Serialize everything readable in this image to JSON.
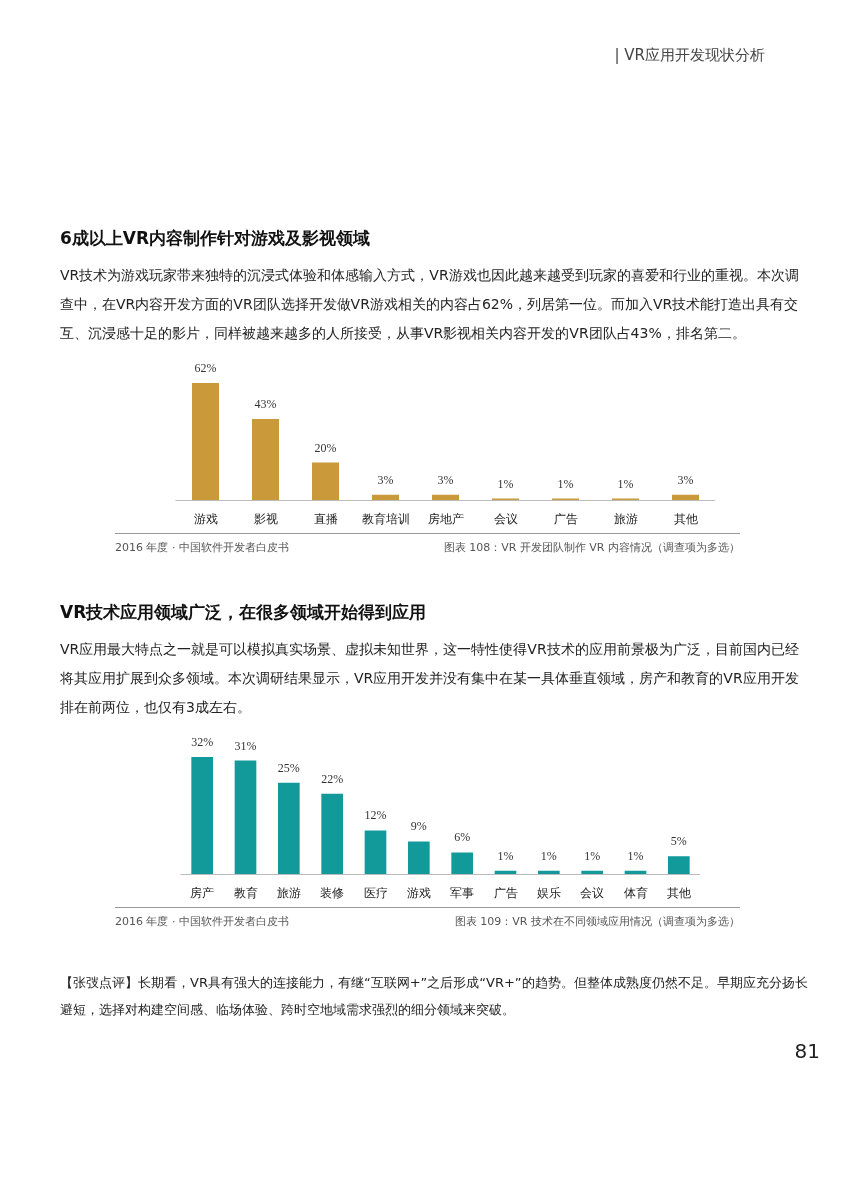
{
  "chart_data": [
    {
      "type": "bar",
      "title": "6成以上VR内容制作针对游戏及影视领域",
      "subtitle": "VR技术为游戏玩家带来独特的沉浸式体验和体感输入方式，VR游戏也因此越来越受到玩家的喜爱和行业的重视。本次调查中，在VR内容开发方面的VR团队选择开发做VR游戏相关的内容占62%，列居第一位。而加入VR技术能打造出具有交互、沉浸感十足的影片，同样被越来越多的人所接受，从事VR影视相关内容开发的VR团队占43%，排名第二。",
      "categories": [
        "游戏",
        "影视",
        "直播",
        "教育培训",
        "房地产",
        "会议",
        "广告",
        "旅游",
        "其他"
      ],
      "values": [
        62,
        43,
        20,
        3,
        3,
        1,
        1,
        1,
        3
      ],
      "value_labels": [
        "62%",
        "43%",
        "20%",
        "3%",
        "3%",
        "1%",
        "1%",
        "1%",
        "3%"
      ],
      "color": "#c9993a",
      "annotations": [
        "2016 年度 · 中国软件开发者白皮书",
        "图表 108：VR 开发团队制作 VR 内容情况（调查项为多选）",
        "| VR应用开发现状分析"
      ]
    },
    {
      "type": "bar",
      "title": "VR技术应用领域广泛，在很多领域开始得到应用",
      "subtitle": "VR应用最大特点之一就是可以模拟真实场景、虚拟未知世界，这一特性使得VR技术的应用前景极为广泛，目前国内已经将其应用扩展到众多领域。本次调研结果显示，VR应用开发并没有集中在某一具体垂直领域，房产和教育的VR应用开发排在前两位，也仅有3成左右。",
      "categories": [
        "房产",
        "教育",
        "旅游",
        "装修",
        "医疗",
        "游戏",
        "军事",
        "广告",
        "娱乐",
        "会议",
        "体育",
        "其他"
      ],
      "values": [
        32,
        31,
        25,
        22,
        12,
        9,
        6,
        1,
        1,
        1,
        1,
        5
      ],
      "value_labels": [
        "32%",
        "31%",
        "25%",
        "22%",
        "12%",
        "9%",
        "6%",
        "1%",
        "1%",
        "1%",
        "1%",
        "5%"
      ],
      "color": "#12999a",
      "annotations": [
        "2016 年度 · 中国软件开发者白皮书",
        "图表 109：VR 技术在不同领域应用情况（调查项为多选）",
        "【张弢点评】长期看，VR具有强大的连接能力，有继“互联网+”之后形成“VR+”的趋势。但整体成熟度仍然不足。早期应充分扬长避短，选择对构建空间感、临场体验、跨时空地域需求强烈的细分领域来突破。",
        "81"
      ]
    }
  ]
}
